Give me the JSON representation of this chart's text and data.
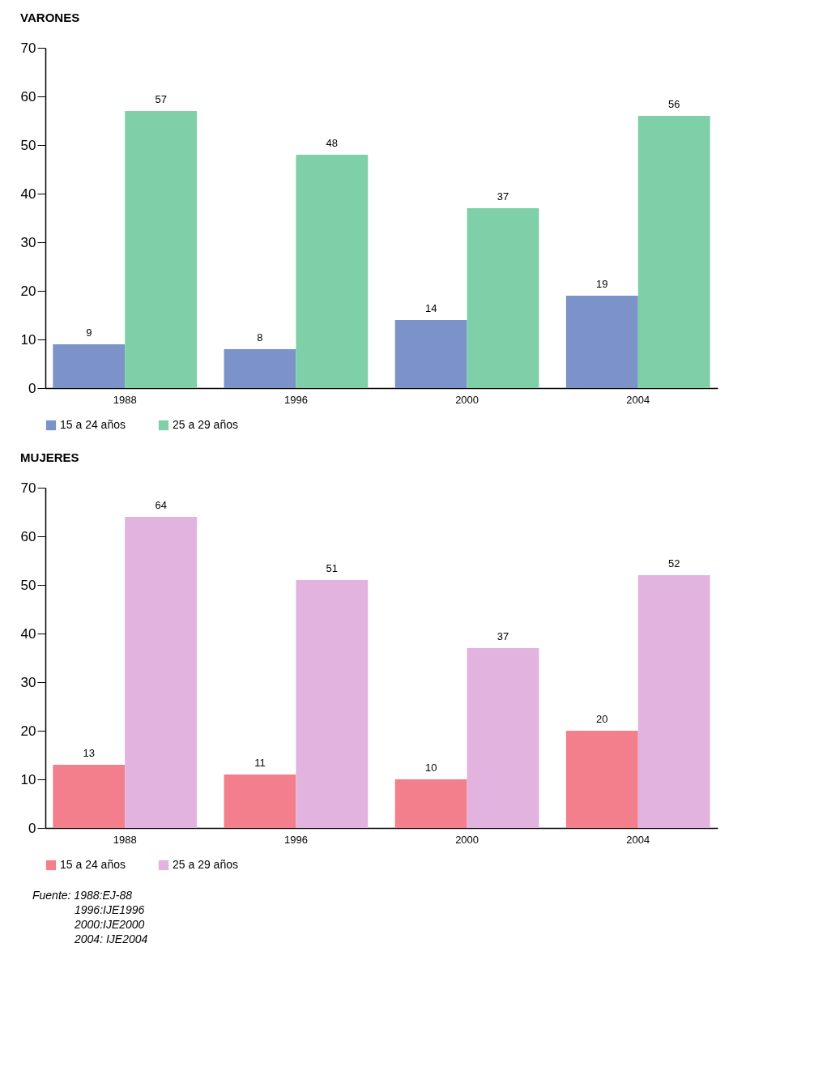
{
  "chart_data": [
    {
      "type": "bar",
      "title": "VARONES",
      "categories": [
        "1988",
        "1996",
        "2000",
        "2004"
      ],
      "series": [
        {
          "name": "15 a 24 años",
          "color": "#7b93c9",
          "values": [
            9,
            8,
            14,
            19
          ]
        },
        {
          "name": "25 a 29 años",
          "color": "#7fcfa8",
          "values": [
            57,
            48,
            37,
            56
          ]
        }
      ],
      "ylim": [
        0,
        70
      ],
      "yticks": [
        0,
        10,
        20,
        30,
        40,
        50,
        60,
        70
      ],
      "data_labels": true,
      "legend": "bottom",
      "grid": false
    },
    {
      "type": "bar",
      "title": "MUJERES",
      "categories": [
        "1988",
        "1996",
        "2000",
        "2004"
      ],
      "series": [
        {
          "name": "15 a 24 años",
          "color": "#f47f8c",
          "values": [
            13,
            11,
            10,
            20
          ]
        },
        {
          "name": "25 a 29 años",
          "color": "#e2b3df",
          "values": [
            64,
            51,
            37,
            52
          ]
        }
      ],
      "ylim": [
        0,
        70
      ],
      "yticks": [
        0,
        10,
        20,
        30,
        40,
        50,
        60,
        70
      ],
      "data_labels": true,
      "legend": "bottom",
      "grid": false,
      "annotations": [
        "Fuente:  1988:EJ-88",
        "1996:IJE1996",
        "2000:IJE2000",
        "2004: IJE2004"
      ]
    }
  ]
}
